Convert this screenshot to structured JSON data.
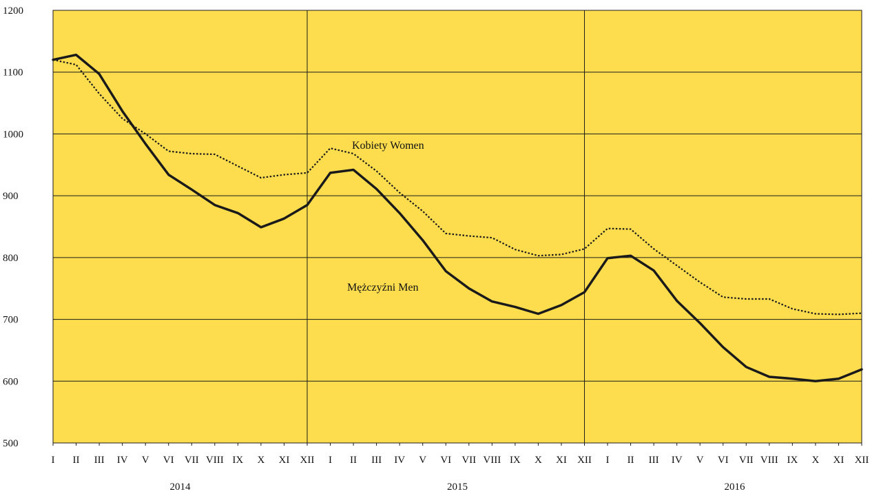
{
  "chart_data": {
    "type": "line",
    "title": "",
    "xlabel": "",
    "ylabel": "",
    "ylim": [
      500,
      1200
    ],
    "yticks": [
      500,
      600,
      700,
      800,
      900,
      1000,
      1100,
      1200
    ],
    "grid": true,
    "background_color": "#FDDD4E",
    "month_labels": [
      "I",
      "II",
      "III",
      "IV",
      "V",
      "VI",
      "VII",
      "VIII",
      "IX",
      "X",
      "XI",
      "XII",
      "I",
      "II",
      "III",
      "IV",
      "V",
      "VI",
      "VII",
      "VIII",
      "IX",
      "X",
      "XI",
      "XII",
      "I",
      "II",
      "III",
      "IV",
      "V",
      "VI",
      "VII",
      "VIII",
      "IX",
      "X",
      "XI",
      "XII"
    ],
    "years": [
      "2014",
      "2015",
      "2016"
    ],
    "series": [
      {
        "name": "Kobiety Women",
        "style": "dotted",
        "color": "#1a1a1a",
        "values": [
          1120,
          1112,
          1065,
          1025,
          1000,
          972,
          968,
          967,
          948,
          929,
          934,
          937,
          977,
          968,
          940,
          905,
          875,
          839,
          835,
          832,
          813,
          803,
          805,
          814,
          847,
          846,
          814,
          787,
          760,
          736,
          733,
          733,
          717,
          709,
          708,
          710
        ]
      },
      {
        "name": "Mężczyźni Men",
        "style": "solid",
        "color": "#1a1a1a",
        "values": [
          1120,
          1128,
          1097,
          1037,
          984,
          934,
          910,
          885,
          872,
          849,
          863,
          885,
          937,
          942,
          911,
          872,
          828,
          778,
          750,
          729,
          720,
          709,
          723,
          744,
          799,
          803,
          779,
          730,
          694,
          655,
          623,
          607,
          604,
          600,
          604,
          619
        ]
      }
    ]
  }
}
